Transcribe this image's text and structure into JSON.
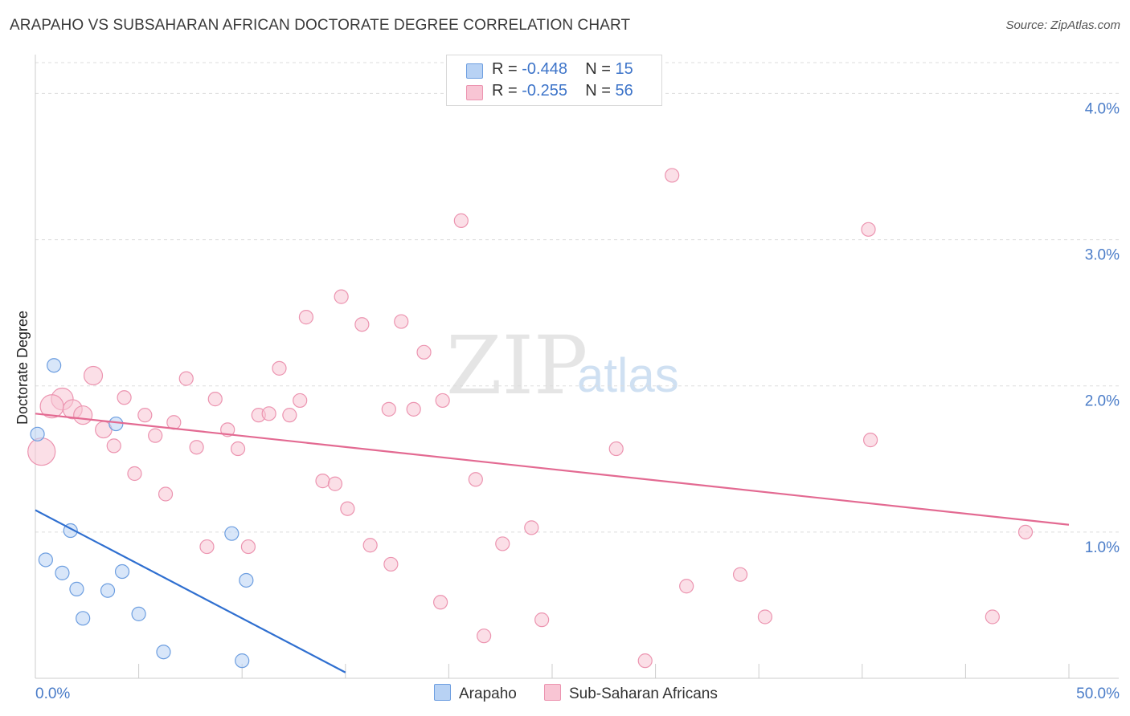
{
  "title": "ARAPAHO VS SUBSAHARAN AFRICAN DOCTORATE DEGREE CORRELATION CHART",
  "source": "Source: ZipAtlas.com",
  "watermark": {
    "zip": "ZIP",
    "atlas": "atlas"
  },
  "legend": {
    "arapaho": {
      "r_label": "R =",
      "r_value": "-0.448",
      "n_label": "N =",
      "n_value": "15"
    },
    "subsaharan": {
      "r_label": "R =",
      "r_value": "-0.255",
      "n_label": "N =",
      "n_value": "56"
    }
  },
  "bottom_legend": {
    "arapaho": "Arapaho",
    "subsaharan": "Sub-Saharan Africans"
  },
  "colors": {
    "arapaho_fill": "#b8d2f4",
    "arapaho_stroke": "#6d9ee0",
    "arapaho_line": "#2f6fd0",
    "subsaharan_fill": "#f8c5d4",
    "subsaharan_stroke": "#ec94b0",
    "subsaharan_line": "#e36a92",
    "grid": "#dddddd",
    "tick_label": "#4a7cc8"
  },
  "chart_data": {
    "type": "scatter",
    "title": "ARAPAHO VS SUBSAHARAN AFRICAN DOCTORATE DEGREE CORRELATION CHART",
    "xlabel": "",
    "ylabel": "Doctorate Degree",
    "xlim": [
      0,
      50
    ],
    "ylim": [
      0,
      4.2
    ],
    "x_tick_labels": [
      "0.0%",
      "50.0%"
    ],
    "y_ticks": [
      1.0,
      2.0,
      3.0,
      4.0
    ],
    "y_tick_labels": [
      "1.0%",
      "2.0%",
      "3.0%",
      "4.0%"
    ],
    "grid": true,
    "series": [
      {
        "name": "Arapaho",
        "r": -0.448,
        "n": 15,
        "trend": {
          "x": [
            0,
            15
          ],
          "y": [
            1.15,
            0.04
          ]
        },
        "points": [
          {
            "x": 0.9,
            "y": 2.14,
            "s": 1
          },
          {
            "x": 0.1,
            "y": 1.67,
            "s": 1
          },
          {
            "x": 3.9,
            "y": 1.74,
            "s": 1
          },
          {
            "x": 1.7,
            "y": 1.01,
            "s": 1
          },
          {
            "x": 9.5,
            "y": 0.99,
            "s": 1
          },
          {
            "x": 0.5,
            "y": 0.81,
            "s": 1
          },
          {
            "x": 1.3,
            "y": 0.72,
            "s": 1
          },
          {
            "x": 4.2,
            "y": 0.73,
            "s": 1
          },
          {
            "x": 10.2,
            "y": 0.67,
            "s": 1
          },
          {
            "x": 2.0,
            "y": 0.61,
            "s": 1
          },
          {
            "x": 3.5,
            "y": 0.6,
            "s": 1
          },
          {
            "x": 2.3,
            "y": 0.41,
            "s": 1
          },
          {
            "x": 5.0,
            "y": 0.44,
            "s": 1
          },
          {
            "x": 6.2,
            "y": 0.18,
            "s": 1
          },
          {
            "x": 10.0,
            "y": 0.12,
            "s": 1
          }
        ]
      },
      {
        "name": "Sub-Saharan Africans",
        "r": -0.255,
        "n": 56,
        "trend": {
          "x": [
            0,
            50
          ],
          "y": [
            1.81,
            1.05
          ]
        },
        "points": [
          {
            "x": 30.8,
            "y": 3.44,
            "s": 1
          },
          {
            "x": 20.6,
            "y": 3.13,
            "s": 1
          },
          {
            "x": 40.3,
            "y": 3.07,
            "s": 1
          },
          {
            "x": 14.8,
            "y": 2.61,
            "s": 1
          },
          {
            "x": 13.1,
            "y": 2.47,
            "s": 1
          },
          {
            "x": 15.8,
            "y": 2.42,
            "s": 1
          },
          {
            "x": 17.7,
            "y": 2.44,
            "s": 1
          },
          {
            "x": 18.8,
            "y": 2.23,
            "s": 1
          },
          {
            "x": 11.8,
            "y": 2.12,
            "s": 1
          },
          {
            "x": 2.8,
            "y": 2.07,
            "s": 1.35
          },
          {
            "x": 7.3,
            "y": 2.05,
            "s": 1
          },
          {
            "x": 4.3,
            "y": 1.92,
            "s": 1
          },
          {
            "x": 8.7,
            "y": 1.91,
            "s": 1
          },
          {
            "x": 12.8,
            "y": 1.9,
            "s": 1
          },
          {
            "x": 19.7,
            "y": 1.9,
            "s": 1
          },
          {
            "x": 1.3,
            "y": 1.91,
            "s": 1.6
          },
          {
            "x": 0.8,
            "y": 1.86,
            "s": 1.7
          },
          {
            "x": 1.8,
            "y": 1.84,
            "s": 1.4
          },
          {
            "x": 17.1,
            "y": 1.84,
            "s": 1
          },
          {
            "x": 18.3,
            "y": 1.84,
            "s": 1
          },
          {
            "x": 2.3,
            "y": 1.8,
            "s": 1.35
          },
          {
            "x": 5.3,
            "y": 1.8,
            "s": 1
          },
          {
            "x": 10.8,
            "y": 1.8,
            "s": 1
          },
          {
            "x": 11.3,
            "y": 1.81,
            "s": 1
          },
          {
            "x": 12.3,
            "y": 1.8,
            "s": 1
          },
          {
            "x": 6.7,
            "y": 1.75,
            "s": 1
          },
          {
            "x": 3.3,
            "y": 1.7,
            "s": 1.2
          },
          {
            "x": 9.3,
            "y": 1.7,
            "s": 1
          },
          {
            "x": 5.8,
            "y": 1.66,
            "s": 1
          },
          {
            "x": 40.4,
            "y": 1.63,
            "s": 1
          },
          {
            "x": 3.8,
            "y": 1.59,
            "s": 1
          },
          {
            "x": 7.8,
            "y": 1.58,
            "s": 1
          },
          {
            "x": 9.8,
            "y": 1.57,
            "s": 1
          },
          {
            "x": 28.1,
            "y": 1.57,
            "s": 1
          },
          {
            "x": 0.3,
            "y": 1.55,
            "s": 2.0
          },
          {
            "x": 4.8,
            "y": 1.4,
            "s": 1
          },
          {
            "x": 13.9,
            "y": 1.35,
            "s": 1
          },
          {
            "x": 14.5,
            "y": 1.33,
            "s": 1
          },
          {
            "x": 21.3,
            "y": 1.36,
            "s": 1
          },
          {
            "x": 6.3,
            "y": 1.26,
            "s": 1
          },
          {
            "x": 15.1,
            "y": 1.16,
            "s": 1
          },
          {
            "x": 24.0,
            "y": 1.03,
            "s": 1
          },
          {
            "x": 8.3,
            "y": 0.9,
            "s": 1
          },
          {
            "x": 10.3,
            "y": 0.9,
            "s": 1
          },
          {
            "x": 16.2,
            "y": 0.91,
            "s": 1
          },
          {
            "x": 22.6,
            "y": 0.92,
            "s": 1
          },
          {
            "x": 47.9,
            "y": 1.0,
            "s": 1
          },
          {
            "x": 17.2,
            "y": 0.78,
            "s": 1
          },
          {
            "x": 34.1,
            "y": 0.71,
            "s": 1
          },
          {
            "x": 31.5,
            "y": 0.63,
            "s": 1
          },
          {
            "x": 19.6,
            "y": 0.52,
            "s": 1
          },
          {
            "x": 35.3,
            "y": 0.42,
            "s": 1
          },
          {
            "x": 46.3,
            "y": 0.42,
            "s": 1
          },
          {
            "x": 24.5,
            "y": 0.4,
            "s": 1
          },
          {
            "x": 21.7,
            "y": 0.29,
            "s": 1
          },
          {
            "x": 29.5,
            "y": 0.12,
            "s": 1
          }
        ]
      }
    ]
  }
}
